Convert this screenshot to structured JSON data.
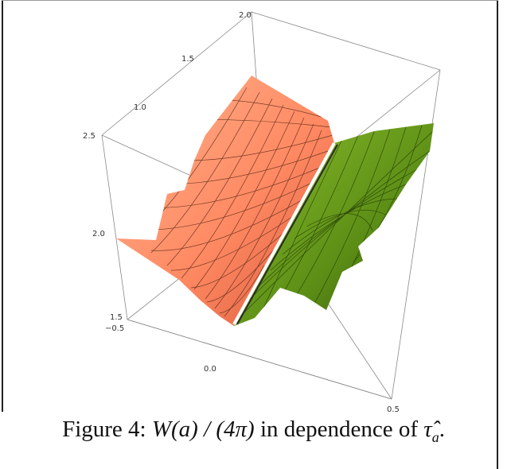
{
  "figure": {
    "caption": {
      "label": "Figure 4:",
      "math": "W(a) / (4π)",
      "text": "in dependence of",
      "symbol": "τ̂",
      "symbol_sub": "a",
      "end": "."
    },
    "axes": {
      "top_axis_ticks": [
        "2.0",
        "1.5",
        "1.0"
      ],
      "left_axis_ticks": [
        "2.5",
        "2.0",
        "1.5"
      ],
      "bottom_axis_ticks": [
        "−0.5",
        "0.0",
        "0.5"
      ]
    },
    "surfaces": {
      "left_color": "#ff9a73",
      "left_dark": "#e0603a",
      "right_color": "#6e9d1e",
      "right_dark": "#3a5a0a",
      "ridge_color": "#ffffff"
    }
  }
}
